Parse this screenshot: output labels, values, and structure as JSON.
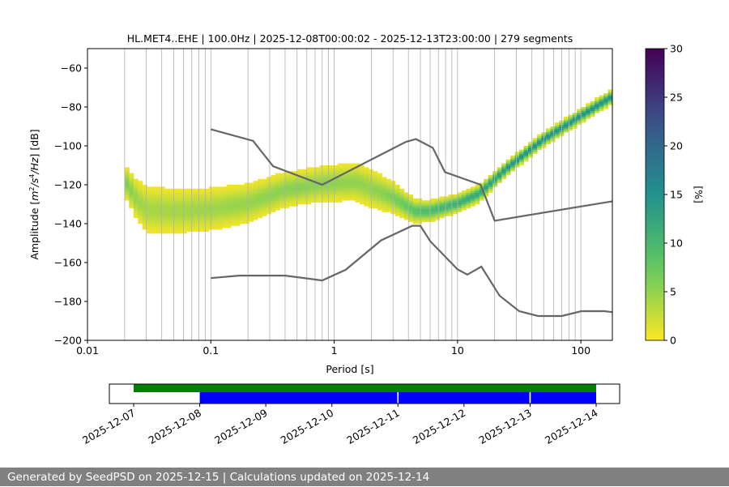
{
  "chart_data": {
    "type": "heatmap",
    "title": "HL.MET4..EHE | 100.0Hz | 2025-12-08T00:00:02 - 2025-12-13T23:00:00 | 279 segments",
    "xlabel": "Period [s]",
    "ylabel": "Amplitude [m²/s⁴/Hz] [dB]",
    "xscale": "log",
    "xlim": [
      0.01,
      180
    ],
    "ylim": [
      -200,
      -50
    ],
    "xticks": [
      {
        "v": 0.01,
        "label": "0.01"
      },
      {
        "v": 0.1,
        "label": "0.1"
      },
      {
        "v": 1,
        "label": "1"
      },
      {
        "v": 10,
        "label": "10"
      },
      {
        "v": 100,
        "label": "100"
      }
    ],
    "yticks": [
      -60,
      -80,
      -100,
      -120,
      -140,
      -160,
      -180,
      -200
    ],
    "grid": true,
    "colorbar": {
      "label": "[%]",
      "range": [
        0,
        30
      ],
      "ticks": [
        0,
        5,
        10,
        15,
        20,
        25,
        30
      ],
      "colormap": "viridis_r"
    },
    "density_model": {
      "mean_curve": [
        [
          0.02,
          -118
        ],
        [
          0.025,
          -128
        ],
        [
          0.03,
          -133
        ],
        [
          0.05,
          -134
        ],
        [
          0.1,
          -133
        ],
        [
          0.2,
          -130
        ],
        [
          0.4,
          -123
        ],
        [
          0.8,
          -120
        ],
        [
          1.5,
          -119
        ],
        [
          3,
          -127
        ],
        [
          4.5,
          -134
        ],
        [
          6,
          -134
        ],
        [
          10,
          -130
        ],
        [
          15,
          -125
        ],
        [
          25,
          -112
        ],
        [
          50,
          -97
        ],
        [
          100,
          -85
        ],
        [
          180,
          -75
        ]
      ],
      "spread_db": [
        [
          0.02,
          7
        ],
        [
          0.03,
          11
        ],
        [
          0.1,
          10
        ],
        [
          0.5,
          8
        ],
        [
          2,
          9
        ],
        [
          5,
          5
        ],
        [
          10,
          4
        ],
        [
          30,
          3
        ],
        [
          180,
          3
        ]
      ]
    },
    "noise_models": [
      {
        "name": "NHNM",
        "points": [
          [
            0.1,
            -91.5
          ],
          [
            0.22,
            -97.4
          ],
          [
            0.32,
            -110.5
          ],
          [
            0.8,
            -120
          ],
          [
            3.8,
            -98
          ],
          [
            4.6,
            -96.5
          ],
          [
            6.3,
            -101
          ],
          [
            7.9,
            -113.5
          ],
          [
            15.4,
            -120
          ],
          [
            20,
            -138.5
          ],
          [
            180,
            -128.5
          ]
        ]
      },
      {
        "name": "NLNM",
        "points": [
          [
            0.1,
            -168
          ],
          [
            0.17,
            -166.7
          ],
          [
            0.4,
            -166.7
          ],
          [
            0.8,
            -169.2
          ],
          [
            1.24,
            -163.7
          ],
          [
            2.4,
            -148.6
          ],
          [
            4.3,
            -141.1
          ],
          [
            5,
            -141.1
          ],
          [
            6,
            -149
          ],
          [
            10,
            -163.5
          ],
          [
            12,
            -166.2
          ],
          [
            15.6,
            -162.1
          ],
          [
            21.9,
            -177
          ],
          [
            31.6,
            -185
          ],
          [
            45,
            -187.5
          ],
          [
            70,
            -187.5
          ],
          [
            101,
            -185
          ],
          [
            154,
            -185
          ],
          [
            180,
            -185.5
          ]
        ]
      }
    ],
    "timeline": {
      "ticks": [
        "2025-12-07",
        "2025-12-08",
        "2025-12-09",
        "2025-12-10",
        "2025-12-11",
        "2025-12-12",
        "2025-12-13",
        "2025-12-14"
      ],
      "available_data": {
        "color": "#008000",
        "start_day": 0,
        "end_day": 7
      },
      "processed_segments": {
        "color": "#0000ff",
        "ranges": [
          [
            1,
            3.99
          ],
          [
            4.01,
            5.99
          ],
          [
            6.01,
            7
          ]
        ]
      }
    }
  },
  "footer": "Generated by SeedPSD on 2025-12-15 | Calculations updated on 2025-12-14"
}
